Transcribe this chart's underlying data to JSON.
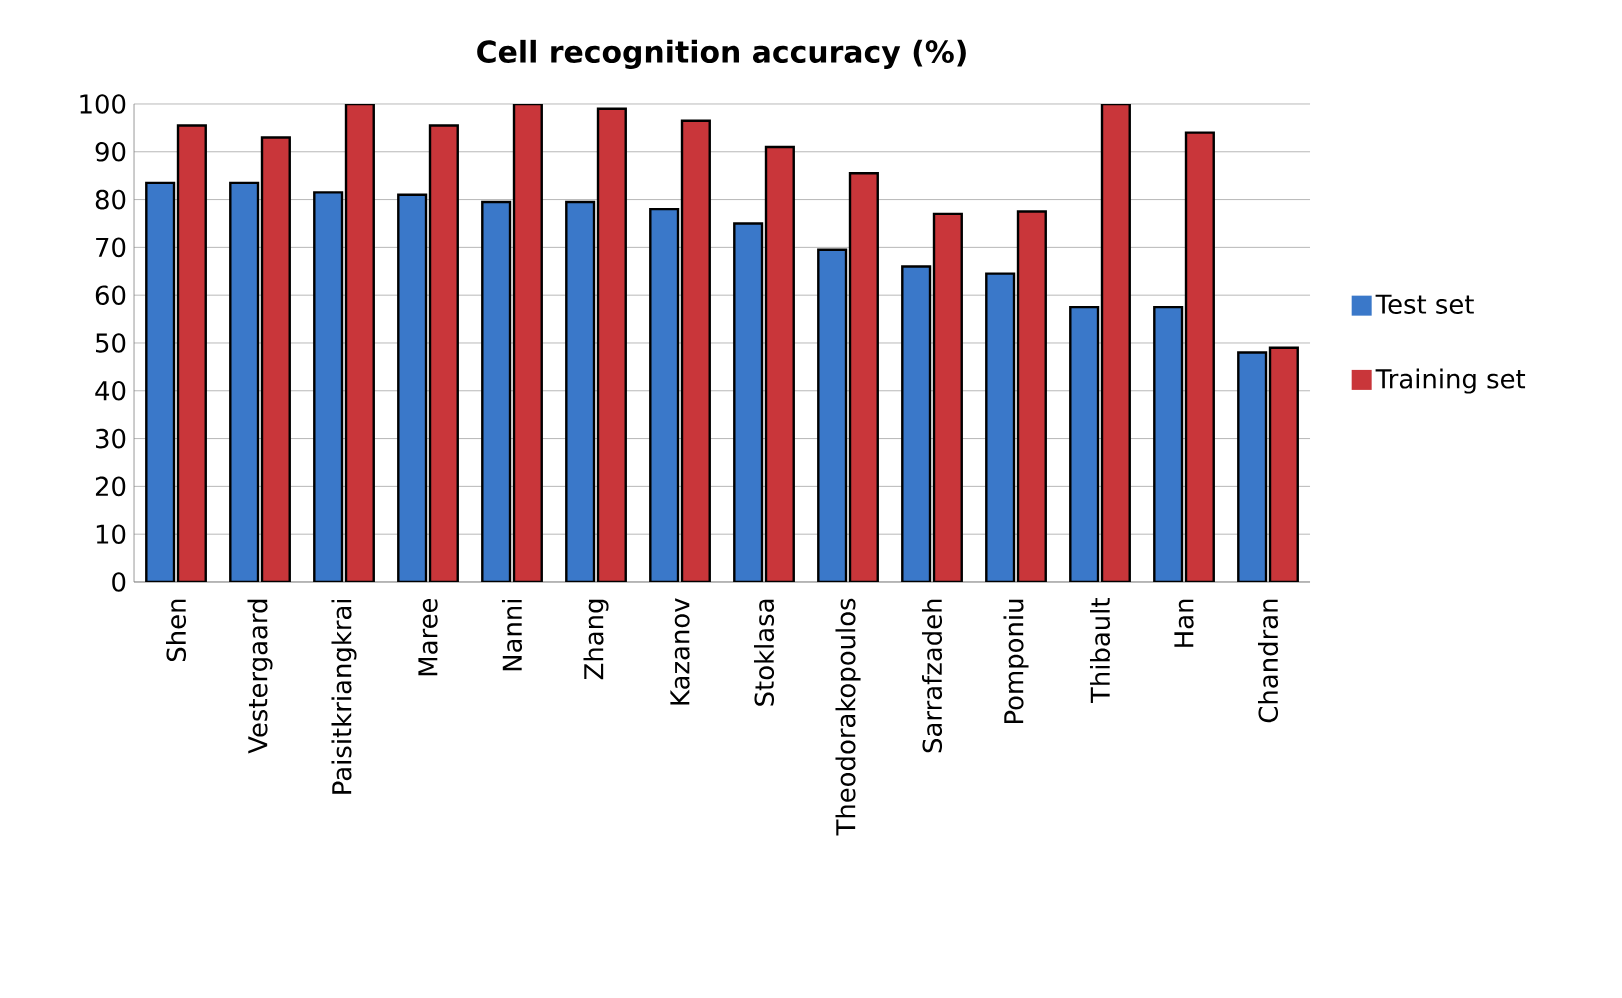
{
  "chart_data": {
    "type": "bar",
    "title": "Cell recognition accuracy (%)",
    "categories": [
      "Shen",
      "Vestergaard",
      "Paisitkriangkrai",
      "Maree",
      "Nanni",
      "Zhang",
      "Kazanov",
      "Stoklasa",
      "Theodorakopoulos",
      "Sarrafzadeh",
      "Pomponiu",
      "Thibault",
      "Han",
      "Chandran"
    ],
    "series": [
      {
        "name": "Test set",
        "color": "#3a78c9",
        "values": [
          83.5,
          83.5,
          81.5,
          81,
          79.5,
          79.5,
          78,
          75,
          69.5,
          66,
          64.5,
          57.5,
          57.5,
          48
        ]
      },
      {
        "name": "Training set",
        "color": "#c9363a",
        "values": [
          95.5,
          93,
          100,
          95.5,
          100,
          99,
          96.5,
          91,
          85.5,
          77,
          77.5,
          100,
          94,
          49
        ]
      }
    ],
    "ylim": [
      0,
      100
    ],
    "yticks": [
      0,
      10,
      20,
      30,
      40,
      50,
      60,
      70,
      80,
      90,
      100
    ],
    "grid": "y",
    "legend": "right"
  }
}
